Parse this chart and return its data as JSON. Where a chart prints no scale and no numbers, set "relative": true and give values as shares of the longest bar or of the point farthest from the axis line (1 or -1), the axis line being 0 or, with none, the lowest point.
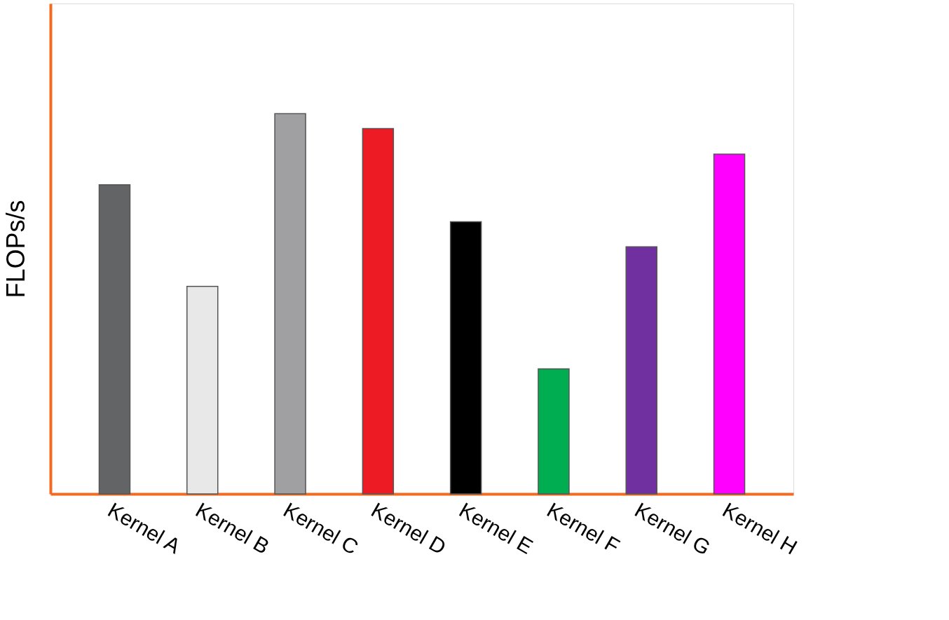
{
  "chart_data": {
    "type": "bar",
    "relative": true,
    "ylabel": "FLOPs/s",
    "categories": [
      "Kernel A",
      "Kernel B",
      "Kernel C",
      "Kernel D",
      "Kernel E",
      "Kernel F",
      "Kernel G",
      "Kernel H"
    ],
    "values": [
      0.813,
      0.546,
      1,
      0.961,
      0.716,
      0.329,
      0.65,
      0.894
    ],
    "colors": [
      "#636466",
      "#e8e8e8",
      "#a0a0a3",
      "#ed1c24",
      "#000000",
      "#00ad50",
      "#7030a0",
      "#ff00ff"
    ],
    "grid": false,
    "legend": false
  }
}
